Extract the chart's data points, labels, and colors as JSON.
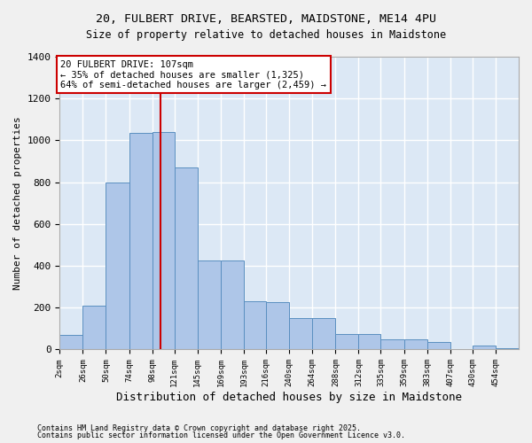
{
  "title_line1": "20, FULBERT DRIVE, BEARSTED, MAIDSTONE, ME14 4PU",
  "title_line2": "Size of property relative to detached houses in Maidstone",
  "xlabel": "Distribution of detached houses by size in Maidstone",
  "ylabel": "Number of detached properties",
  "bar_color": "#aec6e8",
  "bar_edge_color": "#5a8fc0",
  "background_color": "#dce8f5",
  "grid_color": "#ffffff",
  "bins": [
    2,
    26,
    50,
    74,
    98,
    121,
    145,
    169,
    193,
    216,
    240,
    264,
    288,
    312,
    335,
    359,
    383,
    407,
    430,
    454,
    478
  ],
  "counts": [
    70,
    210,
    800,
    1035,
    1040,
    870,
    425,
    425,
    230,
    225,
    150,
    150,
    75,
    75,
    50,
    50,
    35,
    0,
    20,
    5,
    0
  ],
  "vline_x": 107,
  "vline_color": "#cc0000",
  "annotation_title": "20 FULBERT DRIVE: 107sqm",
  "annotation_line1": "← 35% of detached houses are smaller (1,325)",
  "annotation_line2": "64% of semi-detached houses are larger (2,459) →",
  "annotation_box_color": "#cc0000",
  "ylim": [
    0,
    1400
  ],
  "yticks": [
    0,
    200,
    400,
    600,
    800,
    1000,
    1200,
    1400
  ],
  "footnote1": "Contains HM Land Registry data © Crown copyright and database right 2025.",
  "footnote2": "Contains public sector information licensed under the Open Government Licence v3.0."
}
